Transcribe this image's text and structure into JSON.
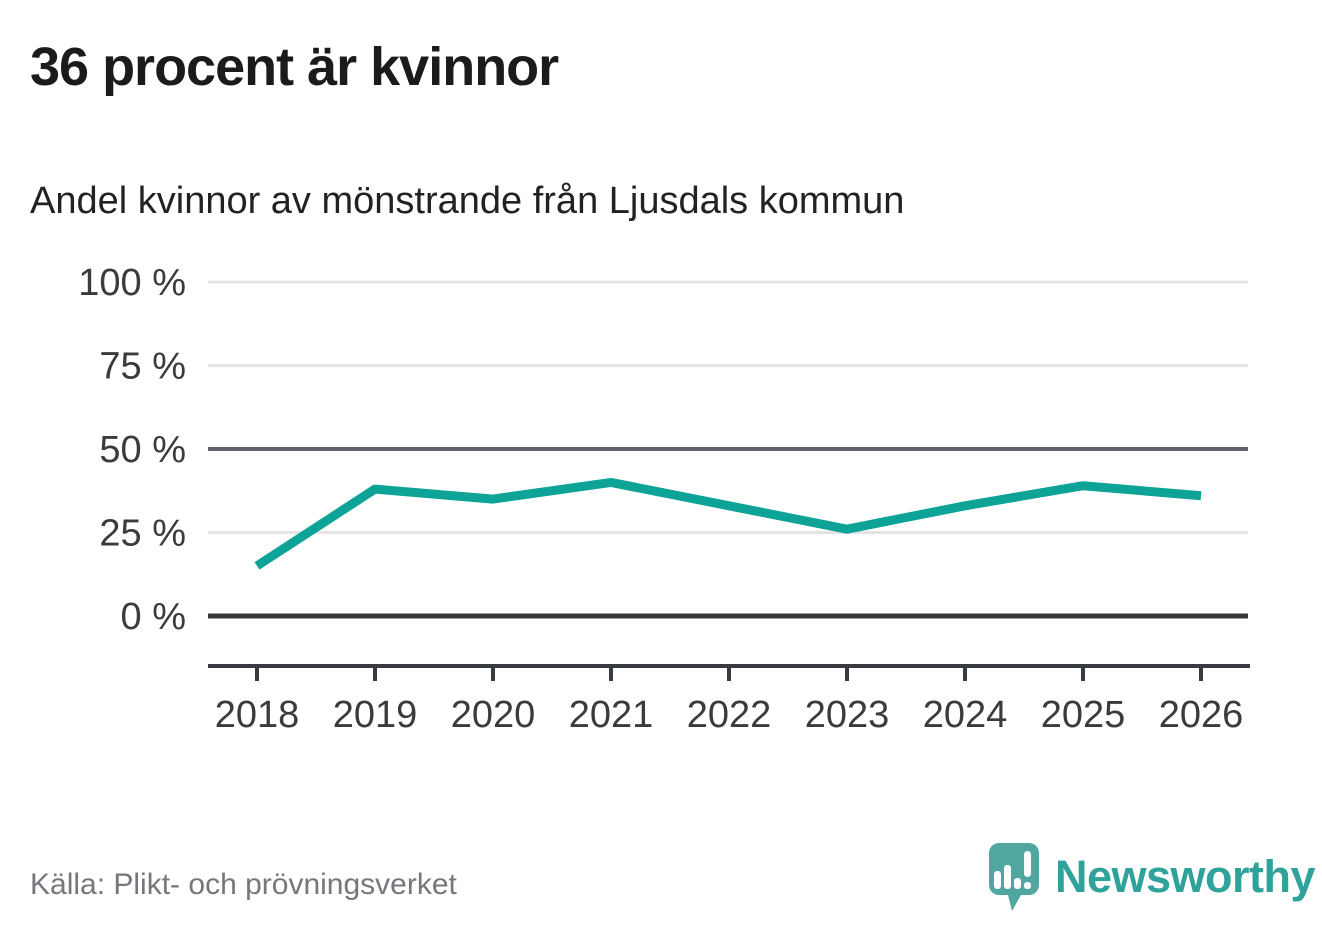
{
  "header": {
    "title": "36 procent är kvinnor",
    "subtitle": "Andel kvinnor av mönstrande från Ljusdals kommun"
  },
  "chart_data": {
    "type": "line",
    "title": "36 procent är kvinnor",
    "subtitle": "Andel kvinnor av mönstrande från Ljusdals kommun",
    "unit": "%",
    "x": [
      "2018",
      "2019",
      "2020",
      "2021",
      "2022",
      "2023",
      "2024",
      "2025",
      "2026"
    ],
    "series": [
      {
        "name": "Andel kvinnor av mönstrande",
        "values": [
          15,
          38,
          35,
          40,
          33,
          26,
          33,
          39,
          36
        ]
      }
    ],
    "ylim": [
      0,
      100
    ],
    "yticks": [
      {
        "value": 0,
        "label": "0 %",
        "emphasis": "zero"
      },
      {
        "value": 25,
        "label": "25 %",
        "emphasis": "light"
      },
      {
        "value": 50,
        "label": "50 %",
        "emphasis": "mid"
      },
      {
        "value": 75,
        "label": "75 %",
        "emphasis": "light"
      },
      {
        "value": 100,
        "label": "100 %",
        "emphasis": "light"
      }
    ],
    "grid": true,
    "legend": "none",
    "line_color": "#0da397"
  },
  "footer": {
    "source": "Källa: Plikt- och prövningsverket",
    "brand": "Newsworthy"
  },
  "colors": {
    "accent_teal": "#0da397",
    "logo_bubble": "#4fa7a0",
    "logo_text": "#2fa29a",
    "title_text": "#1b1b1b",
    "muted_text": "#76767c"
  }
}
